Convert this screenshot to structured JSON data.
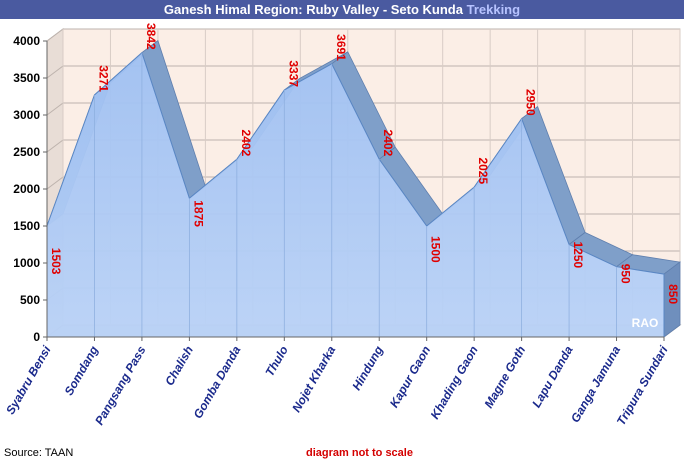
{
  "header": {
    "title_main": "Ganesh Himal Region: Ruby Valley - Seto Kunda ",
    "title_accent": "Trekking"
  },
  "footer": {
    "source": "Source:  TAAN",
    "note": "diagram not to scale"
  },
  "watermark": "RAO",
  "colors": {
    "area_fill": "#a9c8f6",
    "area_edge": "#5a87c4",
    "data_label": "#e00000",
    "category_label": "#1b2a8c",
    "title_bar": "#4a5aa0",
    "title_accent": "#b7c3ff",
    "back_wall": "#fbeee6"
  },
  "chart_data": {
    "type": "area",
    "title": "Ganesh Himal Region: Ruby Valley - Seto Kunda Trekking",
    "xlabel": "",
    "ylabel": "",
    "ylim": [
      0,
      4000
    ],
    "yticks": [
      0,
      500,
      1000,
      1500,
      2000,
      2500,
      3000,
      3500,
      4000
    ],
    "grid": true,
    "categories": [
      "Syabru Bensi",
      "Somdang",
      "Pangsang Pass",
      "Chalish",
      "Gomba Danda",
      "Thulo",
      "Nojet Kharka",
      "Hindung",
      "Kapur Gaon",
      "Khading Gaon",
      "Magne Goth",
      "Lapu Danda",
      "Ganga Jamuna",
      "Tripura Sundari"
    ],
    "series": [
      {
        "values": [
          1503,
          3271,
          3842,
          1875,
          2402,
          3337,
          3691,
          2402,
          1500,
          2025,
          2950,
          1250,
          950,
          850
        ]
      }
    ]
  }
}
